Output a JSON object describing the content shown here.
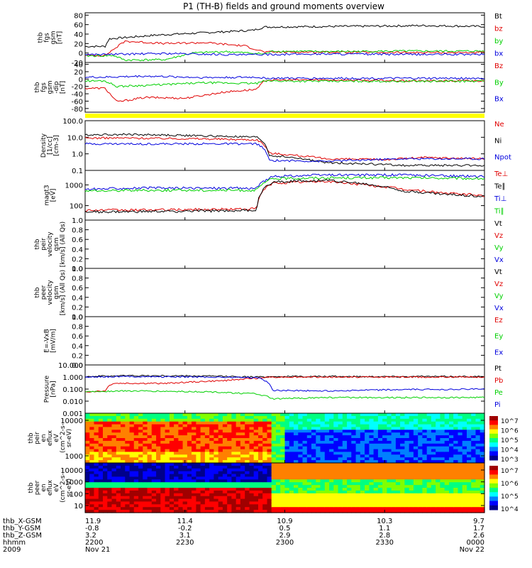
{
  "title": "P1 (TH-B) fields and ground moments overview",
  "colors": {
    "black": "#000000",
    "red": "#e00000",
    "green": "#00d000",
    "blue": "#0000dd",
    "yellow": "#ffff00"
  },
  "chart_data": [
    {
      "type": "line",
      "ylabel": [
        "thb",
        "fgs",
        "gsm",
        "[nT]"
      ],
      "yticks": [
        "80",
        "60",
        "40",
        "20",
        "0",
        "-20"
      ],
      "ylim": [
        -20,
        85
      ],
      "series": [
        {
          "name": "Bt",
          "color": "black",
          "points": [
            [
              0,
              14
            ],
            [
              0.05,
              14
            ],
            [
              0.06,
              30
            ],
            [
              0.18,
              38
            ],
            [
              0.35,
              45
            ],
            [
              0.42,
              48
            ],
            [
              0.45,
              55
            ],
            [
              0.6,
              56
            ],
            [
              0.75,
              57
            ],
            [
              0.85,
              58
            ],
            [
              1,
              56
            ]
          ]
        },
        {
          "name": "bz",
          "color": "red",
          "points": [
            [
              0,
              -5
            ],
            [
              0.05,
              -5
            ],
            [
              0.1,
              25
            ],
            [
              0.2,
              20
            ],
            [
              0.3,
              22
            ],
            [
              0.4,
              15
            ],
            [
              0.45,
              2
            ],
            [
              0.6,
              2
            ],
            [
              0.8,
              1
            ],
            [
              1,
              1
            ]
          ]
        },
        {
          "name": "by",
          "color": "green",
          "points": [
            [
              0,
              -6
            ],
            [
              0.05,
              -6
            ],
            [
              0.07,
              -5
            ],
            [
              0.1,
              -15
            ],
            [
              0.2,
              -14
            ],
            [
              0.27,
              0
            ],
            [
              0.35,
              3
            ],
            [
              0.45,
              -2
            ],
            [
              0.47,
              4
            ],
            [
              0.6,
              3
            ],
            [
              0.8,
              4
            ],
            [
              1,
              4
            ]
          ]
        },
        {
          "name": "bx",
          "color": "blue",
          "points": [
            [
              0,
              -3
            ],
            [
              0.05,
              -3
            ],
            [
              0.2,
              -1
            ],
            [
              0.4,
              -4
            ],
            [
              0.45,
              -3
            ],
            [
              0.6,
              -2
            ],
            [
              0.8,
              -3
            ],
            [
              1,
              -3
            ]
          ]
        }
      ]
    },
    {
      "type": "line",
      "ylabel": [
        "thb",
        "fgs",
        "gsm",
        "-dip",
        "[nT]"
      ],
      "yticks": [
        "40",
        "20",
        "0",
        "-20",
        "-40",
        "-60",
        "-80"
      ],
      "ylim": [
        -90,
        45
      ],
      "series": [
        {
          "name": "Bz",
          "color": "red",
          "points": [
            [
              0,
              -25
            ],
            [
              0.05,
              -25
            ],
            [
              0.08,
              -62
            ],
            [
              0.15,
              -50
            ],
            [
              0.25,
              -52
            ],
            [
              0.35,
              -35
            ],
            [
              0.43,
              -28
            ],
            [
              0.45,
              -3
            ],
            [
              0.6,
              -2
            ],
            [
              0.8,
              -5
            ],
            [
              1,
              -5
            ]
          ]
        },
        {
          "name": "By",
          "color": "green",
          "points": [
            [
              0,
              -5
            ],
            [
              0.05,
              -5
            ],
            [
              0.08,
              -20
            ],
            [
              0.2,
              -15
            ],
            [
              0.3,
              -10
            ],
            [
              0.43,
              -12
            ],
            [
              0.45,
              -5
            ],
            [
              0.6,
              -6
            ],
            [
              0.8,
              -6
            ],
            [
              1,
              -6
            ]
          ]
        },
        {
          "name": "Bx",
          "color": "blue",
          "points": [
            [
              0,
              5
            ],
            [
              0.05,
              5
            ],
            [
              0.15,
              8
            ],
            [
              0.3,
              4
            ],
            [
              0.43,
              5
            ],
            [
              0.45,
              2
            ],
            [
              0.6,
              2
            ],
            [
              0.8,
              2
            ],
            [
              1,
              2
            ]
          ]
        }
      ]
    },
    {
      "type": "line",
      "ylabel": [
        "Density",
        "[1/cc]",
        "[cm-3]"
      ],
      "yticks": [
        "100.0",
        "10.0",
        "1.0",
        "0.1"
      ],
      "ylim": [
        0.1,
        100
      ],
      "yscale": "log",
      "series": [
        {
          "name": "Ne",
          "color": "red",
          "points": [
            [
              0,
              9
            ],
            [
              0.1,
              9
            ],
            [
              0.3,
              8
            ],
            [
              0.43,
              7
            ],
            [
              0.46,
              1.1
            ],
            [
              0.6,
              0.5
            ],
            [
              0.75,
              0.45
            ],
            [
              0.85,
              0.6
            ],
            [
              1,
              0.5
            ]
          ]
        },
        {
          "name": "Ni",
          "color": "black",
          "points": [
            [
              0,
              14
            ],
            [
              0.1,
              15
            ],
            [
              0.3,
              12
            ],
            [
              0.43,
              10
            ],
            [
              0.46,
              0.8
            ],
            [
              0.6,
              0.3
            ],
            [
              0.8,
              0.2
            ],
            [
              1,
              0.2
            ]
          ]
        },
        {
          "name": "Npot",
          "color": "blue",
          "points": [
            [
              0,
              4
            ],
            [
              0.1,
              4
            ],
            [
              0.3,
              4
            ],
            [
              0.43,
              4
            ],
            [
              0.46,
              0.4
            ],
            [
              0.6,
              0.35
            ],
            [
              0.8,
              0.5
            ],
            [
              1,
              0.5
            ]
          ]
        }
      ]
    },
    {
      "type": "line",
      "ylabel": [
        "magt3",
        "[eV]"
      ],
      "yticks": [
        "1000",
        "100"
      ],
      "ylim": [
        20,
        5000
      ],
      "yscale": "log",
      "series": [
        {
          "name": "Te⊥",
          "color": "red",
          "points": [
            [
              0,
              60
            ],
            [
              0.1,
              60
            ],
            [
              0.3,
              65
            ],
            [
              0.43,
              70
            ],
            [
              0.47,
              1200
            ],
            [
              0.6,
              1500
            ],
            [
              0.7,
              1000
            ],
            [
              0.8,
              600
            ],
            [
              0.9,
              400
            ],
            [
              1,
              300
            ]
          ]
        },
        {
          "name": "Te∥",
          "color": "black",
          "points": [
            [
              0,
              50
            ],
            [
              0.1,
              50
            ],
            [
              0.3,
              55
            ],
            [
              0.43,
              60
            ],
            [
              0.47,
              1400
            ],
            [
              0.6,
              1700
            ],
            [
              0.7,
              1100
            ],
            [
              0.8,
              500
            ],
            [
              0.9,
              350
            ],
            [
              1,
              280
            ]
          ]
        },
        {
          "name": "Ti⊥",
          "color": "blue",
          "points": [
            [
              0,
              600
            ],
            [
              0.1,
              700
            ],
            [
              0.3,
              700
            ],
            [
              0.43,
              700
            ],
            [
              0.47,
              2500
            ],
            [
              0.6,
              3000
            ],
            [
              0.8,
              3000
            ],
            [
              1,
              2500
            ]
          ]
        },
        {
          "name": "Ti∥",
          "color": "green",
          "points": [
            [
              0,
              500
            ],
            [
              0.1,
              550
            ],
            [
              0.3,
              550
            ],
            [
              0.43,
              550
            ],
            [
              0.47,
              2000
            ],
            [
              0.6,
              2200
            ],
            [
              0.8,
              2200
            ],
            [
              1,
              2000
            ]
          ]
        }
      ]
    },
    {
      "type": "line",
      "ylabel": [
        "thb",
        "peir",
        "velocity",
        "gsm",
        "[km/s] (All Qs)"
      ],
      "yticks": [
        "1.0",
        "0.8",
        "0.6",
        "0.4",
        "0.2",
        "0.0"
      ],
      "ylim": [
        0,
        1
      ],
      "series": [
        {
          "name": "Vt",
          "color": "black",
          "points": []
        },
        {
          "name": "Vz",
          "color": "red",
          "points": []
        },
        {
          "name": "Vy",
          "color": "green",
          "points": []
        },
        {
          "name": "Vx",
          "color": "blue",
          "points": []
        }
      ]
    },
    {
      "type": "line",
      "ylabel": [
        "thb",
        "peer",
        "velocity",
        "gsm",
        "[km/s] (All Qs)"
      ],
      "yticks": [
        "1.0",
        "0.8",
        "0.6",
        "0.4",
        "0.2",
        "0.0"
      ],
      "ylim": [
        0,
        1
      ],
      "series": [
        {
          "name": "Vt",
          "color": "black",
          "points": []
        },
        {
          "name": "Vz",
          "color": "red",
          "points": []
        },
        {
          "name": "Vy",
          "color": "green",
          "points": []
        },
        {
          "name": "Vx",
          "color": "blue",
          "points": []
        }
      ]
    },
    {
      "type": "line",
      "ylabel": [
        "E=-VxB",
        "[mV/m]"
      ],
      "yticks": [
        "1.0",
        "0.8",
        "0.6",
        "0.4",
        "0.2",
        "0.0"
      ],
      "ylim": [
        0,
        1
      ],
      "series": [
        {
          "name": "Ez",
          "color": "red",
          "points": []
        },
        {
          "name": "Ey",
          "color": "green",
          "points": []
        },
        {
          "name": "Ex",
          "color": "blue",
          "points": []
        }
      ]
    },
    {
      "type": "line",
      "ylabel": [
        "Pressure",
        "[nPa]"
      ],
      "yticks": [
        "10.000",
        "1.000",
        "0.100",
        "0.010",
        "0.001"
      ],
      "ylim": [
        0.001,
        10
      ],
      "yscale": "log",
      "series": [
        {
          "name": "Pt",
          "color": "black",
          "points": [
            [
              0,
              1.1
            ],
            [
              0.1,
              1.3
            ],
            [
              0.3,
              1.2
            ],
            [
              0.43,
              1.0
            ],
            [
              0.47,
              1.1
            ],
            [
              0.6,
              1.1
            ],
            [
              0.8,
              1.1
            ],
            [
              1,
              1.1
            ]
          ]
        },
        {
          "name": "Pb",
          "color": "red",
          "points": [
            [
              0,
              0.06
            ],
            [
              0.05,
              0.07
            ],
            [
              0.07,
              0.3
            ],
            [
              0.2,
              0.3
            ],
            [
              0.35,
              0.5
            ],
            [
              0.43,
              0.8
            ],
            [
              0.47,
              1.0
            ],
            [
              0.6,
              1.0
            ],
            [
              0.8,
              1.0
            ],
            [
              1,
              1.0
            ]
          ]
        },
        {
          "name": "Pe",
          "color": "green",
          "points": [
            [
              0,
              0.06
            ],
            [
              0.1,
              0.07
            ],
            [
              0.3,
              0.06
            ],
            [
              0.43,
              0.04
            ],
            [
              0.47,
              0.015
            ],
            [
              0.6,
              0.02
            ],
            [
              0.8,
              0.02
            ],
            [
              1,
              0.02
            ]
          ]
        },
        {
          "name": "Pi",
          "color": "blue",
          "points": [
            [
              0,
              1.0
            ],
            [
              0.1,
              1.1
            ],
            [
              0.3,
              1.0
            ],
            [
              0.43,
              0.9
            ],
            [
              0.47,
              0.08
            ],
            [
              0.6,
              0.07
            ],
            [
              0.8,
              0.09
            ],
            [
              1,
              0.1
            ]
          ]
        }
      ]
    },
    {
      "type": "heatmap",
      "ylabel": [
        "thb",
        "peir",
        "en",
        "eflux",
        "eV",
        "(cm^2-s-",
        "sr-eV)"
      ],
      "yticks": [
        "10000",
        "1000"
      ],
      "colorbar_ticks": [
        "10^7",
        "10^6",
        "10^5",
        "10^4",
        "10^3"
      ]
    },
    {
      "type": "heatmap",
      "ylabel": [
        "thb",
        "peer",
        "en",
        "eflux",
        "eV",
        "(cm^2-s-",
        "sr-eV)"
      ],
      "yticks": [
        "10000",
        "1000",
        "100",
        "10"
      ],
      "colorbar_ticks": [
        "10^7",
        "10^6",
        "10^5",
        "10^4"
      ]
    }
  ],
  "x_axis": {
    "rows": [
      {
        "label": "thb_X-GSM",
        "values": [
          "11.9",
          "11.4",
          "10.9",
          "10.3",
          "9.7"
        ]
      },
      {
        "label": "thb_Y-GSM",
        "values": [
          "-0.8",
          "-0.2",
          "0.5",
          "1.1",
          "1.7"
        ]
      },
      {
        "label": "thb_Z-GSM",
        "values": [
          "3.2",
          "3.1",
          "2.9",
          "2.8",
          "2.6"
        ]
      },
      {
        "label": "hhmm",
        "values": [
          "2200",
          "2230",
          "2300",
          "2330",
          "0000"
        ]
      },
      {
        "label": "2009",
        "values": [
          "Nov 21",
          "",
          "",
          "",
          "Nov 22"
        ]
      }
    ]
  }
}
